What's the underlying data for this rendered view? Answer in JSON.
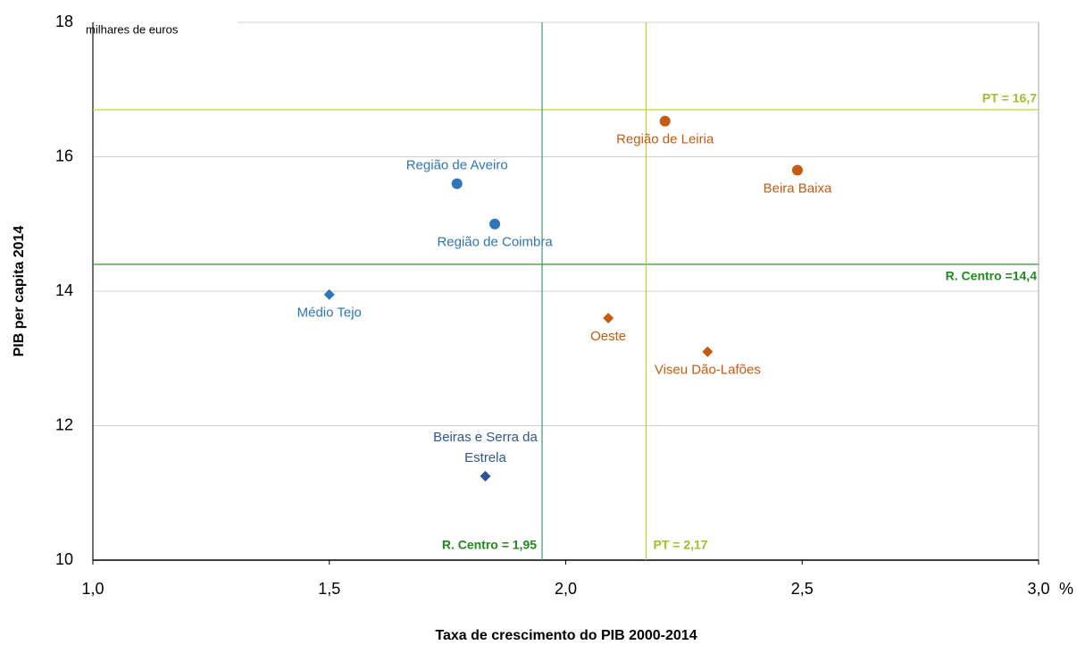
{
  "chart_data": {
    "type": "scatter",
    "y_label": "PIB per capita 2014",
    "x_label": "Taxa de crescimento do PIB 2000-2014",
    "y_unit": "milhares de euros",
    "x_unit": "%",
    "xlim": [
      1.0,
      3.0
    ],
    "ylim": [
      10,
      18
    ],
    "xticks": [
      {
        "value": 1.0,
        "label": "1,0"
      },
      {
        "value": 1.5,
        "label": "1,5"
      },
      {
        "value": 2.0,
        "label": "2,0"
      },
      {
        "value": 2.5,
        "label": "2,5"
      },
      {
        "value": 3.0,
        "label": "3,0"
      }
    ],
    "yticks": [
      10,
      12,
      14,
      16,
      18
    ],
    "grid": true,
    "points": [
      {
        "label": "Região de Aveiro",
        "x": 1.77,
        "y": 15.6,
        "color": "#2e75b6",
        "marker": "circle",
        "label_position": "above"
      },
      {
        "label": "Região de Coimbra",
        "x": 1.85,
        "y": 15.0,
        "color": "#2e75b6",
        "marker": "circle",
        "label_position": "below"
      },
      {
        "label": "Médio Tejo",
        "x": 1.5,
        "y": 13.95,
        "color": "#2e75b6",
        "marker": "diamond",
        "label_position": "below"
      },
      {
        "label": [
          "Beiras e Serra da",
          "Estrela"
        ],
        "x": 1.83,
        "y": 11.25,
        "color": "#2f5597",
        "marker": "diamond",
        "label_position": "above"
      },
      {
        "label": "Região de Leiria",
        "x": 2.21,
        "y": 16.53,
        "color": "#c55a11",
        "marker": "circle",
        "label_position": "below"
      },
      {
        "label": "Beira Baixa",
        "x": 2.49,
        "y": 15.8,
        "color": "#c55a11",
        "marker": "circle",
        "label_position": "below"
      },
      {
        "label": "Oeste",
        "x": 2.09,
        "y": 13.6,
        "color": "#c55a11",
        "marker": "diamond",
        "label_position": "below"
      },
      {
        "label": "Viseu Dão-Lafões",
        "x": 2.3,
        "y": 13.1,
        "color": "#c55a11",
        "marker": "diamond",
        "label_position": "below"
      }
    ],
    "hlines": [
      {
        "value": 16.7,
        "label": "PT = 16,7",
        "color": "#b5d334",
        "label_color": "#9bc02a",
        "label_position": "above"
      },
      {
        "value": 14.4,
        "label": "R. Centro =14,4",
        "color": "#2e9a2e",
        "label_color": "#1f8a1f",
        "label_position": "below"
      }
    ],
    "vlines": [
      {
        "value": 1.95,
        "label": "R. Centro = 1,95",
        "color": "#3a9b6f",
        "label_color": "#1f8a1f",
        "label_position": "left"
      },
      {
        "value": 2.17,
        "label": "PT = 2,17",
        "color": "#b5d334",
        "label_color": "#9bc02a",
        "label_position": "right"
      }
    ]
  }
}
